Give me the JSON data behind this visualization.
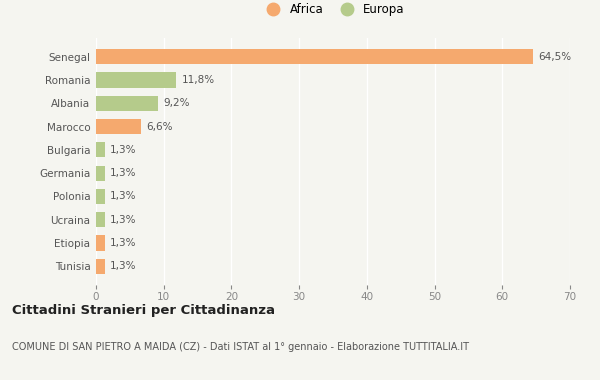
{
  "categories": [
    "Tunisia",
    "Etiopia",
    "Ucraina",
    "Polonia",
    "Germania",
    "Bulgaria",
    "Marocco",
    "Albania",
    "Romania",
    "Senegal"
  ],
  "values": [
    1.3,
    1.3,
    1.3,
    1.3,
    1.3,
    1.3,
    6.6,
    9.2,
    11.8,
    64.5
  ],
  "colors": [
    "#f5a96e",
    "#f5a96e",
    "#b5cb8b",
    "#b5cb8b",
    "#b5cb8b",
    "#b5cb8b",
    "#f5a96e",
    "#b5cb8b",
    "#b5cb8b",
    "#f5a96e"
  ],
  "labels": [
    "1,3%",
    "1,3%",
    "1,3%",
    "1,3%",
    "1,3%",
    "1,3%",
    "6,6%",
    "9,2%",
    "11,8%",
    "64,5%"
  ],
  "legend_africa_color": "#f5a96e",
  "legend_europa_color": "#b5cb8b",
  "xlim": [
    0,
    70
  ],
  "xticks": [
    0,
    10,
    20,
    30,
    40,
    50,
    60,
    70
  ],
  "title": "Cittadini Stranieri per Cittadinanza",
  "subtitle": "COMUNE DI SAN PIETRO A MAIDA (CZ) - Dati ISTAT al 1° gennaio - Elaborazione TUTTITALIA.IT",
  "background_color": "#f5f5f0",
  "plot_bg_color": "#f5f5f0",
  "grid_color": "#ffffff",
  "label_color": "#555555",
  "tick_color": "#888888"
}
